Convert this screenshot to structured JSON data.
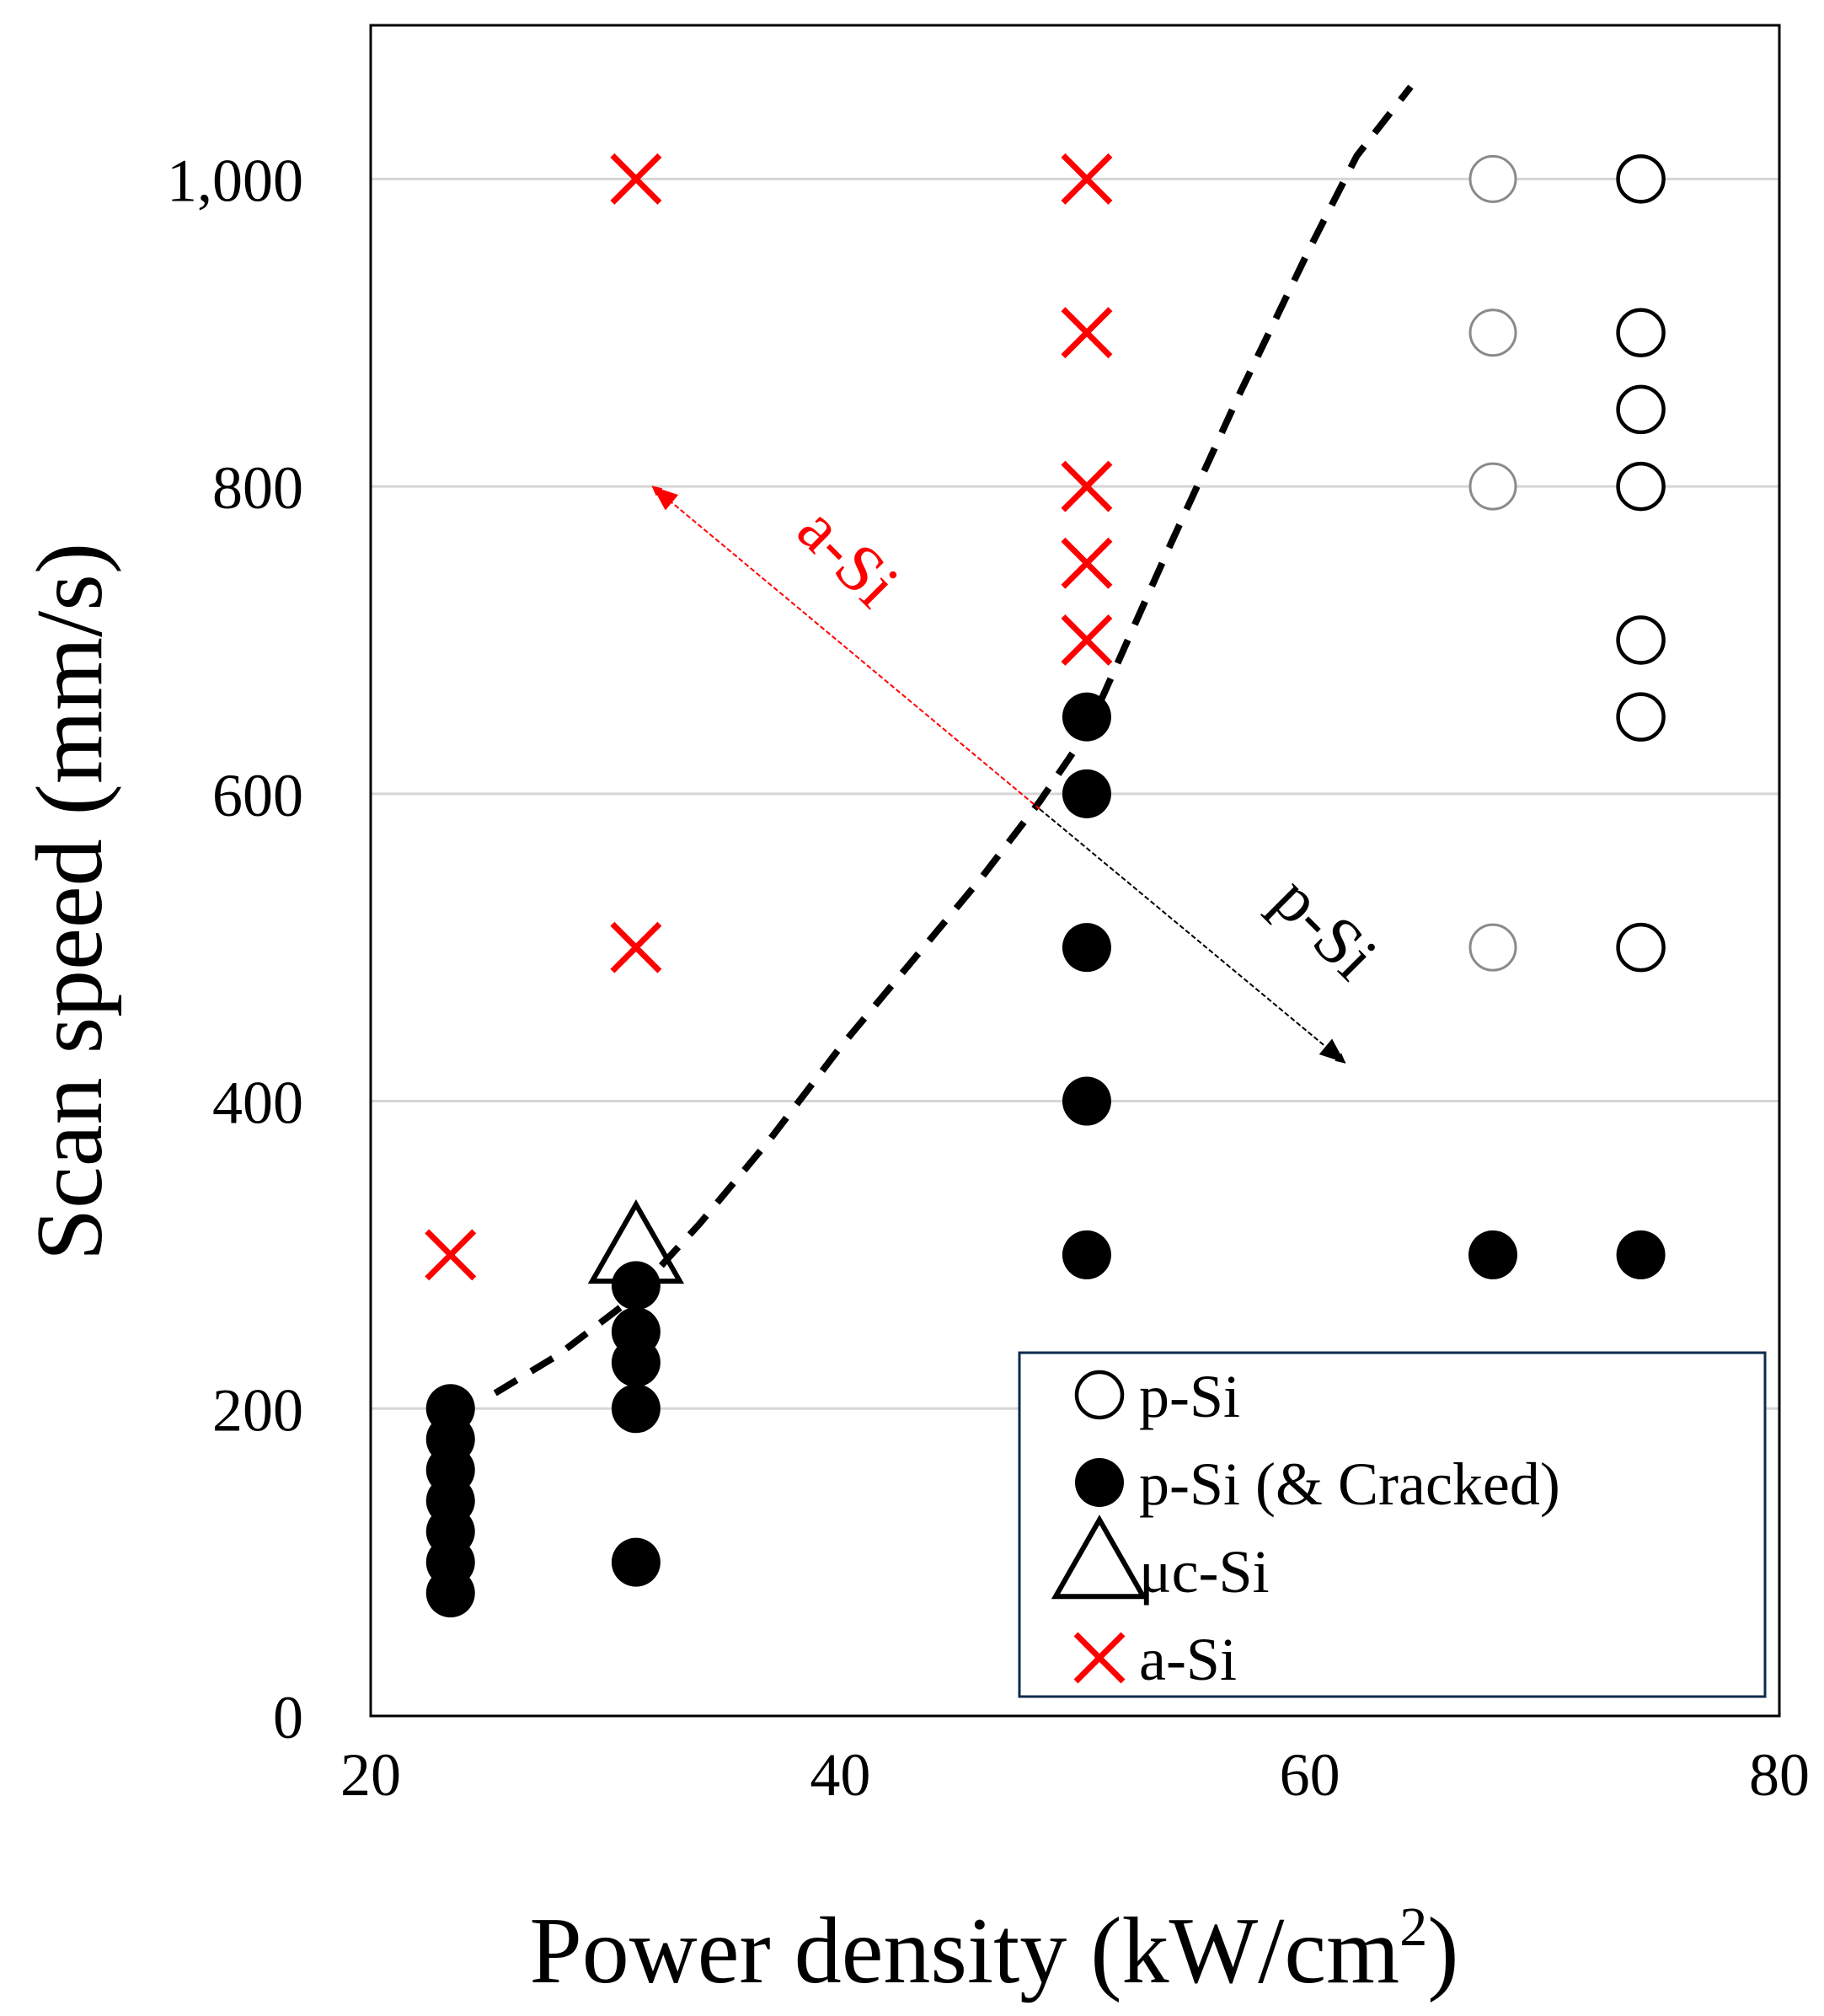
{
  "chart_data": {
    "type": "scatter",
    "xlabel": "Power density (kW/cm",
    "xlabel_sup": "2",
    "xlabel_close": ")",
    "ylabel": "Scan speed (mm/s)",
    "xlim": [
      20,
      80
    ],
    "ylim": [
      0,
      1100
    ],
    "x_ticks": [
      {
        "value": 20,
        "label": "20"
      },
      {
        "value": 40,
        "label": "40"
      },
      {
        "value": 60,
        "label": "60"
      },
      {
        "value": 80,
        "label": "80"
      }
    ],
    "y_ticks": [
      {
        "value": 0,
        "label": "0"
      },
      {
        "value": 200,
        "label": "200"
      },
      {
        "value": 400,
        "label": "400"
      },
      {
        "value": 600,
        "label": "600"
      },
      {
        "value": 800,
        "label": "800"
      },
      {
        "value": 1000,
        "label": "1,000"
      }
    ],
    "grid": "horizontal",
    "legend_position": "bottom-right",
    "series": [
      {
        "name": "p-Si",
        "marker": "open-circle",
        "color": "#000000",
        "points": [
          {
            "x": 67.8,
            "y": 1000,
            "faded": true
          },
          {
            "x": 67.8,
            "y": 900,
            "faded": true
          },
          {
            "x": 67.8,
            "y": 800,
            "faded": true
          },
          {
            "x": 67.8,
            "y": 500,
            "faded": true
          },
          {
            "x": 74.1,
            "y": 1000
          },
          {
            "x": 74.1,
            "y": 900
          },
          {
            "x": 74.1,
            "y": 850
          },
          {
            "x": 74.1,
            "y": 800
          },
          {
            "x": 74.1,
            "y": 700
          },
          {
            "x": 74.1,
            "y": 650
          },
          {
            "x": 74.1,
            "y": 500
          }
        ]
      },
      {
        "name": "p-Si (& Cracked)",
        "marker": "filled-circle",
        "color": "#000000",
        "points": [
          {
            "x": 23.4,
            "y": 200
          },
          {
            "x": 23.4,
            "y": 180
          },
          {
            "x": 23.4,
            "y": 160
          },
          {
            "x": 23.4,
            "y": 140
          },
          {
            "x": 23.4,
            "y": 120
          },
          {
            "x": 23.4,
            "y": 100
          },
          {
            "x": 23.4,
            "y": 80
          },
          {
            "x": 31.3,
            "y": 280
          },
          {
            "x": 31.3,
            "y": 250
          },
          {
            "x": 31.3,
            "y": 230
          },
          {
            "x": 31.3,
            "y": 200
          },
          {
            "x": 31.3,
            "y": 100
          },
          {
            "x": 50.5,
            "y": 650
          },
          {
            "x": 50.5,
            "y": 600
          },
          {
            "x": 50.5,
            "y": 500
          },
          {
            "x": 50.5,
            "y": 400
          },
          {
            "x": 50.5,
            "y": 300
          },
          {
            "x": 67.8,
            "y": 300
          },
          {
            "x": 74.1,
            "y": 300
          }
        ]
      },
      {
        "name": "μc-Si",
        "marker": "open-triangle",
        "color": "#000000",
        "points": [
          {
            "x": 31.3,
            "y": 300
          }
        ]
      },
      {
        "name": "a-Si",
        "marker": "cross",
        "color": "#ff0000",
        "points": [
          {
            "x": 23.4,
            "y": 300
          },
          {
            "x": 31.3,
            "y": 1000
          },
          {
            "x": 31.3,
            "y": 500
          },
          {
            "x": 50.5,
            "y": 1000
          },
          {
            "x": 50.5,
            "y": 900
          },
          {
            "x": 50.5,
            "y": 800
          },
          {
            "x": 50.5,
            "y": 750
          },
          {
            "x": 50.5,
            "y": 700
          }
        ]
      }
    ],
    "boundary_curve": {
      "style": "dashed",
      "color": "#000000",
      "points": [
        {
          "x": 25.3,
          "y": 210
        },
        {
          "x": 28,
          "y": 235
        },
        {
          "x": 31,
          "y": 270
        },
        {
          "x": 34,
          "y": 320
        },
        {
          "x": 37,
          "y": 375
        },
        {
          "x": 40,
          "y": 435
        },
        {
          "x": 43,
          "y": 490
        },
        {
          "x": 46,
          "y": 545
        },
        {
          "x": 48.5,
          "y": 595
        },
        {
          "x": 50.5,
          "y": 640
        },
        {
          "x": 54,
          "y": 760
        },
        {
          "x": 57,
          "y": 860
        },
        {
          "x": 60,
          "y": 955
        },
        {
          "x": 62,
          "y": 1015
        },
        {
          "x": 64.3,
          "y": 1060
        }
      ]
    },
    "annotations": [
      {
        "text": "a-Si",
        "color": "#ff0000",
        "arrow_from": {
          "x": 48.5,
          "y": 590
        },
        "arrow_to": {
          "x": 32,
          "y": 800
        }
      },
      {
        "text": "p-Si",
        "color": "#000000",
        "arrow_from": {
          "x": 48.5,
          "y": 590
        },
        "arrow_to": {
          "x": 61.5,
          "y": 425
        }
      }
    ]
  }
}
